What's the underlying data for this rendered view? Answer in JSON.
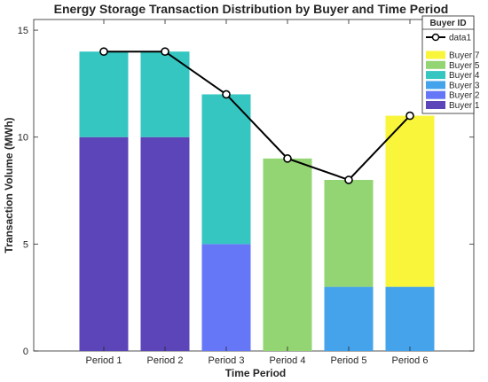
{
  "chart_data": {
    "type": "bar",
    "stacked": true,
    "title": "Energy Storage Transaction Distribution by Buyer and Time Period",
    "xlabel": "Time Period",
    "ylabel": "Transaction Volume (MWh)",
    "ylim": [
      0,
      15.5
    ],
    "yticks": [
      "0",
      "5",
      "10",
      "15"
    ],
    "categories": [
      "Period 1",
      "Period 2",
      "Period 3",
      "Period 4",
      "Period 5",
      "Period 6"
    ],
    "series": [
      {
        "name": "Buyer 1",
        "color": "#5B45B8",
        "values": [
          10,
          10,
          0,
          0,
          0,
          0
        ]
      },
      {
        "name": "Buyer 2",
        "color": "#6577F6",
        "values": [
          0,
          0,
          5,
          0,
          0,
          0
        ]
      },
      {
        "name": "Buyer 3",
        "color": "#45A3EB",
        "values": [
          0,
          0,
          0,
          0,
          3,
          3
        ]
      },
      {
        "name": "Buyer 4",
        "color": "#35C6C2",
        "values": [
          4,
          4,
          7,
          0,
          0,
          0
        ]
      },
      {
        "name": "Buyer 5",
        "color": "#93D473",
        "values": [
          0,
          0,
          0,
          9,
          5,
          0
        ]
      },
      {
        "name": "Buyer 7",
        "color": "#F9F53A",
        "values": [
          0,
          0,
          0,
          0,
          0,
          8
        ]
      }
    ],
    "line": {
      "name": "data1",
      "color": "#000000",
      "values": [
        14,
        14,
        12,
        9,
        8,
        11
      ]
    },
    "legend": {
      "title": "Buyer ID",
      "placement": "top-right",
      "entries": [
        "data1",
        "Buyer 7",
        "Buyer 5",
        "Buyer 4",
        "Buyer 3",
        "Buyer 2",
        "Buyer 1"
      ]
    },
    "grid": false
  }
}
